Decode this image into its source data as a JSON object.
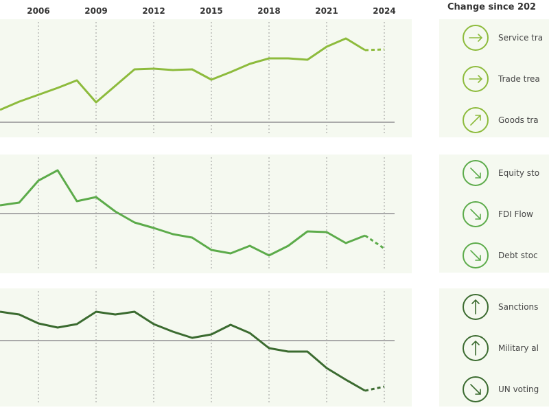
{
  "chart_data": {
    "type": "line",
    "x_ticks": [
      "2006",
      "2009",
      "2012",
      "2015",
      "2018",
      "2021",
      "2024"
    ],
    "x": [
      2004,
      2005,
      2006,
      2007,
      2008,
      2009,
      2010,
      2011,
      2012,
      2013,
      2014,
      2015,
      2016,
      2017,
      2018,
      2019,
      2020,
      2021,
      2022,
      2023,
      2024
    ],
    "projected_from": 2023,
    "grid": "vertical dotted at tick years",
    "panels": [
      {
        "color": "#8dbb3c",
        "zero_line": true,
        "values": [
          18,
          30,
          40,
          50,
          61,
          29,
          53,
          77,
          78,
          76,
          77,
          62,
          73,
          85,
          93,
          93,
          91,
          110,
          122,
          105,
          106
        ]
      },
      {
        "color": "#5cab4a",
        "zero_line": true,
        "values": [
          12,
          16,
          48,
          63,
          18,
          24,
          3,
          -13,
          -21,
          -30,
          -35,
          -53,
          -58,
          -47,
          -61,
          -47,
          -26,
          -27,
          -43,
          -32,
          -51
        ]
      },
      {
        "color": "#3b6b30",
        "zero_line": true,
        "values": [
          42,
          38,
          25,
          19,
          24,
          42,
          38,
          42,
          24,
          13,
          4,
          9,
          23,
          11,
          -11,
          -16,
          -16,
          -40,
          -57,
          -73,
          -67
        ]
      }
    ]
  },
  "side": {
    "title": "Change since 202",
    "groups": [
      {
        "color": "#8dbb3c",
        "items": [
          {
            "icon": "arrow-right",
            "label": "Service tra"
          },
          {
            "icon": "arrow-right",
            "label": "Trade trea"
          },
          {
            "icon": "arrow-up-right",
            "label": "Goods tra"
          }
        ]
      },
      {
        "color": "#5cab4a",
        "items": [
          {
            "icon": "arrow-down-right",
            "label": "Equity sto"
          },
          {
            "icon": "arrow-down-right",
            "label": "FDI Flow"
          },
          {
            "icon": "arrow-down-right",
            "label": "Debt stoc"
          }
        ]
      },
      {
        "color": "#3b6b30",
        "items": [
          {
            "icon": "arrow-up",
            "label": "Sanctions"
          },
          {
            "icon": "arrow-up",
            "label": "Military al"
          },
          {
            "icon": "arrow-down-right",
            "label": "UN voting"
          }
        ]
      }
    ]
  }
}
